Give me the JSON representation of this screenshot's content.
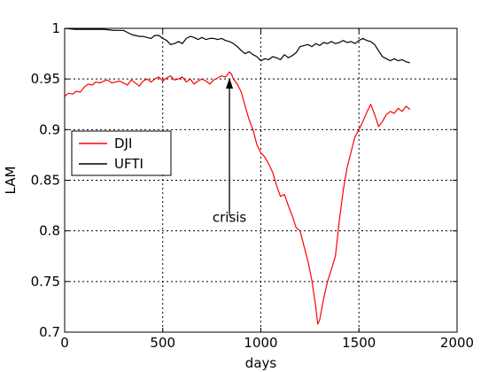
{
  "chart_data": {
    "type": "line",
    "title": "",
    "xlabel": "days",
    "ylabel": "LAM",
    "xlim": [
      0,
      2000
    ],
    "ylim": [
      0.7,
      1.0
    ],
    "xticks": [
      0,
      500,
      1000,
      1500,
      2000
    ],
    "xtick_labels": [
      "0",
      "500",
      "1000",
      "1500",
      "2000"
    ],
    "yticks": [
      0.7,
      0.75,
      0.8,
      0.85,
      0.9,
      0.95,
      1.0
    ],
    "ytick_labels": [
      "0.7",
      "0.75",
      "0.8",
      "0.85",
      "0.9",
      "0.95",
      "1"
    ],
    "grid": true,
    "legend_position": "middle-left",
    "series": [
      {
        "name": "DJI",
        "color": "#ff0000",
        "points": [
          [
            0,
            0.933
          ],
          [
            20,
            0.936
          ],
          [
            40,
            0.935
          ],
          [
            60,
            0.938
          ],
          [
            80,
            0.937
          ],
          [
            100,
            0.942
          ],
          [
            120,
            0.945
          ],
          [
            140,
            0.944
          ],
          [
            160,
            0.947
          ],
          [
            180,
            0.946
          ],
          [
            200,
            0.948
          ],
          [
            220,
            0.949
          ],
          [
            240,
            0.946
          ],
          [
            260,
            0.947
          ],
          [
            280,
            0.948
          ],
          [
            300,
            0.946
          ],
          [
            320,
            0.944
          ],
          [
            340,
            0.949
          ],
          [
            360,
            0.946
          ],
          [
            380,
            0.943
          ],
          [
            400,
            0.948
          ],
          [
            420,
            0.95
          ],
          [
            440,
            0.947
          ],
          [
            460,
            0.95
          ],
          [
            480,
            0.952
          ],
          [
            500,
            0.948
          ],
          [
            520,
            0.951
          ],
          [
            540,
            0.953
          ],
          [
            560,
            0.949
          ],
          [
            580,
            0.95
          ],
          [
            600,
            0.952
          ],
          [
            620,
            0.947
          ],
          [
            640,
            0.95
          ],
          [
            660,
            0.945
          ],
          [
            680,
            0.948
          ],
          [
            700,
            0.95
          ],
          [
            720,
            0.948
          ],
          [
            740,
            0.945
          ],
          [
            760,
            0.949
          ],
          [
            780,
            0.951
          ],
          [
            800,
            0.953
          ],
          [
            820,
            0.952
          ],
          [
            840,
            0.957
          ],
          [
            850,
            0.955
          ],
          [
            860,
            0.95
          ],
          [
            880,
            0.945
          ],
          [
            900,
            0.937
          ],
          [
            920,
            0.923
          ],
          [
            940,
            0.91
          ],
          [
            960,
            0.9
          ],
          [
            980,
            0.885
          ],
          [
            1000,
            0.877
          ],
          [
            1020,
            0.873
          ],
          [
            1040,
            0.866
          ],
          [
            1060,
            0.858
          ],
          [
            1080,
            0.845
          ],
          [
            1100,
            0.834
          ],
          [
            1120,
            0.836
          ],
          [
            1140,
            0.825
          ],
          [
            1160,
            0.815
          ],
          [
            1180,
            0.803
          ],
          [
            1200,
            0.8
          ],
          [
            1220,
            0.785
          ],
          [
            1240,
            0.77
          ],
          [
            1260,
            0.751
          ],
          [
            1280,
            0.725
          ],
          [
            1290,
            0.708
          ],
          [
            1300,
            0.712
          ],
          [
            1320,
            0.733
          ],
          [
            1340,
            0.75
          ],
          [
            1360,
            0.762
          ],
          [
            1380,
            0.775
          ],
          [
            1400,
            0.81
          ],
          [
            1420,
            0.84
          ],
          [
            1440,
            0.863
          ],
          [
            1460,
            0.878
          ],
          [
            1480,
            0.893
          ],
          [
            1500,
            0.9
          ],
          [
            1520,
            0.908
          ],
          [
            1540,
            0.917
          ],
          [
            1560,
            0.925
          ],
          [
            1580,
            0.915
          ],
          [
            1600,
            0.903
          ],
          [
            1620,
            0.908
          ],
          [
            1640,
            0.915
          ],
          [
            1660,
            0.918
          ],
          [
            1680,
            0.916
          ],
          [
            1700,
            0.921
          ],
          [
            1720,
            0.918
          ],
          [
            1740,
            0.923
          ],
          [
            1760,
            0.92
          ]
        ]
      },
      {
        "name": "UFTI",
        "color": "#000000",
        "points": [
          [
            0,
            1.0
          ],
          [
            50,
            0.999
          ],
          [
            100,
            0.999
          ],
          [
            150,
            0.999
          ],
          [
            200,
            0.999
          ],
          [
            250,
            0.998
          ],
          [
            300,
            0.998
          ],
          [
            320,
            0.996
          ],
          [
            340,
            0.994
          ],
          [
            360,
            0.993
          ],
          [
            380,
            0.992
          ],
          [
            400,
            0.992
          ],
          [
            420,
            0.991
          ],
          [
            440,
            0.99
          ],
          [
            460,
            0.993
          ],
          [
            480,
            0.993
          ],
          [
            500,
            0.99
          ],
          [
            520,
            0.988
          ],
          [
            540,
            0.984
          ],
          [
            560,
            0.985
          ],
          [
            580,
            0.987
          ],
          [
            600,
            0.985
          ],
          [
            620,
            0.99
          ],
          [
            640,
            0.992
          ],
          [
            660,
            0.991
          ],
          [
            680,
            0.989
          ],
          [
            700,
            0.991
          ],
          [
            720,
            0.989
          ],
          [
            740,
            0.99
          ],
          [
            760,
            0.99
          ],
          [
            780,
            0.989
          ],
          [
            800,
            0.99
          ],
          [
            820,
            0.988
          ],
          [
            840,
            0.987
          ],
          [
            860,
            0.985
          ],
          [
            880,
            0.982
          ],
          [
            900,
            0.978
          ],
          [
            920,
            0.975
          ],
          [
            940,
            0.977
          ],
          [
            960,
            0.974
          ],
          [
            980,
            0.972
          ],
          [
            1000,
            0.968
          ],
          [
            1020,
            0.97
          ],
          [
            1040,
            0.969
          ],
          [
            1060,
            0.972
          ],
          [
            1080,
            0.971
          ],
          [
            1100,
            0.969
          ],
          [
            1120,
            0.974
          ],
          [
            1140,
            0.971
          ],
          [
            1160,
            0.973
          ],
          [
            1180,
            0.976
          ],
          [
            1200,
            0.982
          ],
          [
            1220,
            0.983
          ],
          [
            1240,
            0.984
          ],
          [
            1260,
            0.982
          ],
          [
            1280,
            0.985
          ],
          [
            1300,
            0.983
          ],
          [
            1320,
            0.986
          ],
          [
            1340,
            0.985
          ],
          [
            1360,
            0.987
          ],
          [
            1380,
            0.985
          ],
          [
            1400,
            0.986
          ],
          [
            1420,
            0.988
          ],
          [
            1440,
            0.986
          ],
          [
            1460,
            0.987
          ],
          [
            1480,
            0.985
          ],
          [
            1500,
            0.988
          ],
          [
            1520,
            0.99
          ],
          [
            1540,
            0.988
          ],
          [
            1560,
            0.987
          ],
          [
            1580,
            0.984
          ],
          [
            1600,
            0.978
          ],
          [
            1620,
            0.972
          ],
          [
            1640,
            0.97
          ],
          [
            1660,
            0.968
          ],
          [
            1680,
            0.97
          ],
          [
            1700,
            0.968
          ],
          [
            1720,
            0.969
          ],
          [
            1740,
            0.967
          ],
          [
            1760,
            0.966
          ]
        ]
      }
    ],
    "annotations": [
      {
        "text": "crisis",
        "arrow_x": 840,
        "arrow_tip_y": 0.951,
        "arrow_tail_y": 0.815,
        "text_y": 0.8
      }
    ]
  }
}
